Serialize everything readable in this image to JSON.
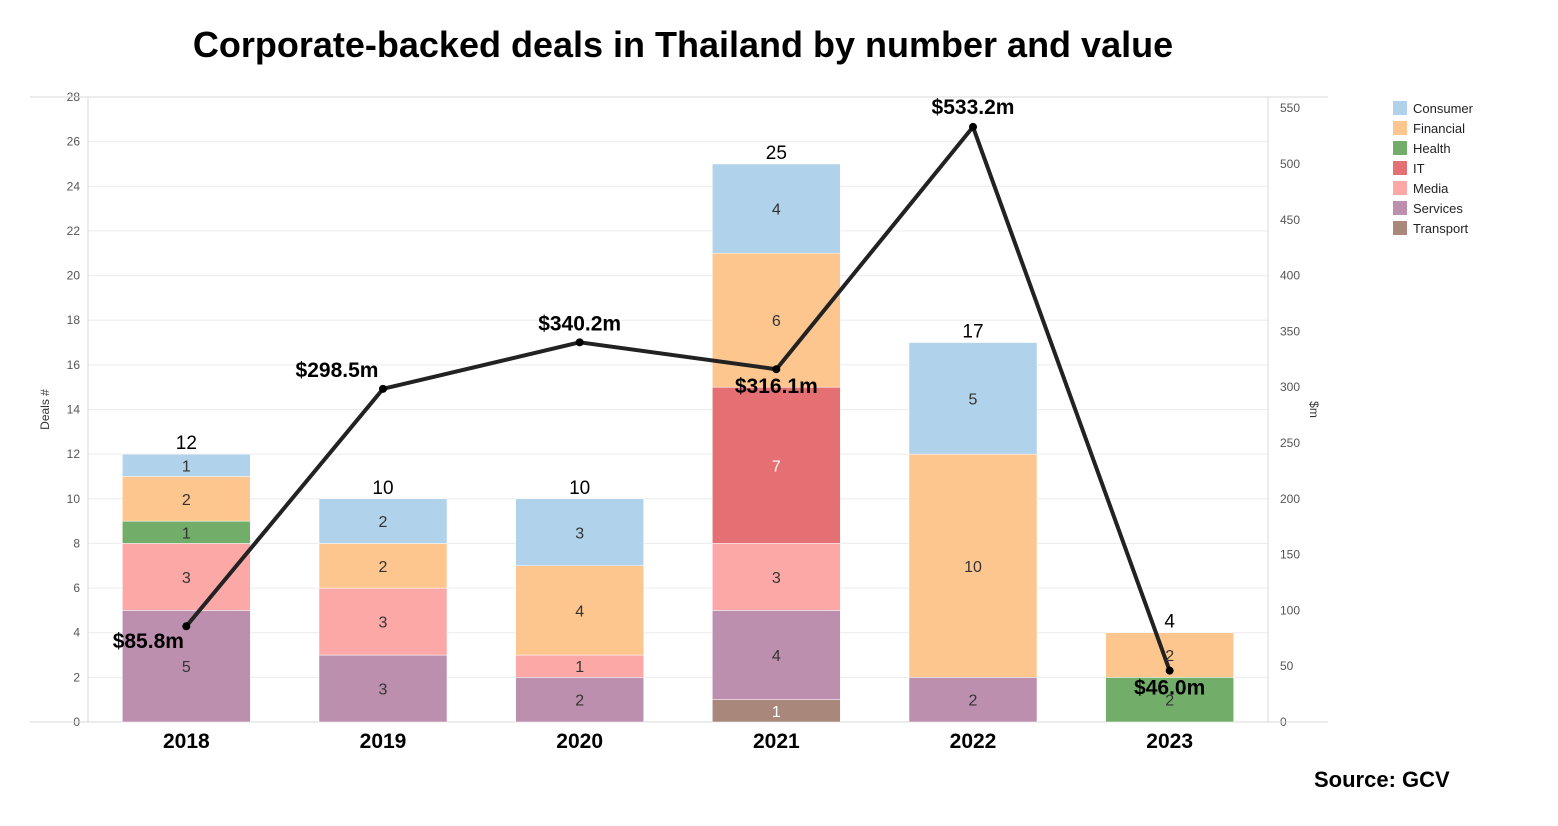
{
  "chart_data": {
    "type": "bar",
    "stacked": true,
    "title": "Corporate-backed deals in Thailand by number and value",
    "source": "Source: GCV",
    "categories": [
      "2018",
      "2019",
      "2020",
      "2021",
      "2022",
      "2023"
    ],
    "y_left": {
      "label": "Deals #",
      "range": [
        0,
        28
      ],
      "ticks": [
        0,
        2,
        4,
        6,
        8,
        10,
        12,
        14,
        16,
        18,
        20,
        22,
        24,
        26,
        28
      ]
    },
    "y_right": {
      "label": "$m",
      "range": [
        0,
        560
      ],
      "ticks": [
        0,
        50,
        100,
        150,
        200,
        250,
        300,
        350,
        400,
        450,
        500,
        550
      ]
    },
    "series": [
      {
        "name": "Transport",
        "color": "#a9877a",
        "values": [
          0,
          0,
          0,
          1,
          0,
          0
        ]
      },
      {
        "name": "Services",
        "color": "#bc8faf",
        "values": [
          5,
          3,
          2,
          4,
          2,
          0
        ]
      },
      {
        "name": "Media",
        "color": "#fba8a6",
        "values": [
          3,
          3,
          1,
          3,
          0,
          0
        ]
      },
      {
        "name": "IT",
        "color": "#e57073",
        "values": [
          0,
          0,
          0,
          7,
          0,
          0
        ]
      },
      {
        "name": "Health",
        "color": "#72ad6a",
        "values": [
          1,
          0,
          0,
          0,
          0,
          2
        ]
      },
      {
        "name": "Financial",
        "color": "#fdc68e",
        "values": [
          2,
          2,
          4,
          6,
          10,
          2
        ]
      },
      {
        "name": "Consumer",
        "color": "#b1d2eb",
        "values": [
          1,
          2,
          3,
          4,
          5,
          0
        ]
      }
    ],
    "totals": [
      12,
      10,
      10,
      25,
      17,
      4
    ],
    "line": {
      "name": "$m",
      "values": [
        85.8,
        298.5,
        340.2,
        316.1,
        533.2,
        46.0
      ],
      "labels": [
        "$85.8m",
        "$298.5m",
        "$340.2m",
        "$316.1m",
        "$533.2m",
        "$46.0m"
      ],
      "color": "#222222"
    },
    "legend": {
      "position": "top-right",
      "items": [
        {
          "name": "Consumer",
          "color": "#b1d2eb"
        },
        {
          "name": "Financial",
          "color": "#fdc68e"
        },
        {
          "name": "Health",
          "color": "#72ad6a"
        },
        {
          "name": "IT",
          "color": "#e57073"
        },
        {
          "name": "Media",
          "color": "#fba8a6"
        },
        {
          "name": "Services",
          "color": "#bc8faf"
        },
        {
          "name": "Transport",
          "color": "#a9877a"
        }
      ]
    },
    "grid": true
  }
}
